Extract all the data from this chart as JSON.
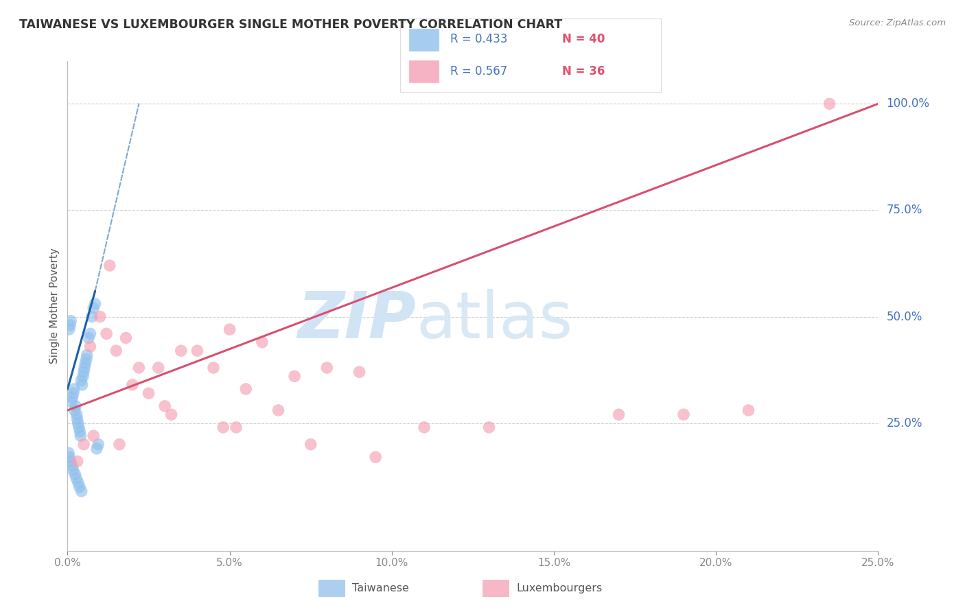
{
  "title": "TAIWANESE VS LUXEMBOURGER SINGLE MOTHER POVERTY CORRELATION CHART",
  "source": "Source: ZipAtlas.com",
  "ylabel": "Single Mother Poverty",
  "xlim": [
    0.0,
    25.0
  ],
  "ylim": [
    -5.0,
    110.0
  ],
  "y_data_min": 0.0,
  "y_data_max": 100.0,
  "taiwanese_color": "#90C0EC",
  "luxembourger_color": "#F4A0B5",
  "taiwanese_line_color": "#1a5fa8",
  "luxembourger_line_color": "#d94f6e",
  "taiwanese_R": 0.433,
  "taiwanese_N": 40,
  "luxembourger_R": 0.567,
  "luxembourger_N": 36,
  "tw_regression_x0": 0.0,
  "tw_regression_y0": 33.0,
  "tw_regression_x1": 0.85,
  "tw_regression_y1": 56.0,
  "tw_dashed_x0": 0.85,
  "tw_dashed_y0": 56.0,
  "tw_dashed_x1": 2.2,
  "tw_dashed_y1": 100.0,
  "lux_regression_x0": 0.0,
  "lux_regression_y0": 28.0,
  "lux_regression_x1": 25.0,
  "lux_regression_y1": 100.0,
  "taiwanese_x": [
    0.05,
    0.08,
    0.1,
    0.12,
    0.15,
    0.18,
    0.2,
    0.22,
    0.25,
    0.28,
    0.3,
    0.32,
    0.35,
    0.38,
    0.4,
    0.42,
    0.45,
    0.48,
    0.5,
    0.52,
    0.55,
    0.58,
    0.6,
    0.65,
    0.7,
    0.75,
    0.8,
    0.85,
    0.9,
    0.95,
    0.03,
    0.06,
    0.09,
    0.14,
    0.17,
    0.23,
    0.27,
    0.33,
    0.37,
    0.43
  ],
  "taiwanese_y": [
    47.0,
    48.0,
    49.0,
    30.0,
    31.0,
    32.0,
    33.0,
    28.0,
    29.0,
    27.0,
    26.0,
    25.0,
    24.0,
    23.0,
    22.0,
    35.0,
    34.0,
    36.0,
    37.0,
    38.0,
    39.0,
    40.0,
    41.0,
    45.0,
    46.0,
    50.0,
    52.0,
    53.0,
    19.0,
    20.0,
    18.0,
    17.0,
    16.0,
    15.0,
    14.0,
    13.0,
    12.0,
    11.0,
    10.0,
    9.0
  ],
  "luxembourger_x": [
    0.3,
    0.5,
    0.7,
    1.0,
    1.2,
    1.5,
    1.8,
    2.0,
    2.5,
    3.0,
    3.5,
    4.0,
    4.5,
    5.0,
    5.5,
    6.0,
    6.5,
    7.0,
    8.0,
    9.0,
    1.3,
    2.2,
    3.2,
    5.2,
    7.5,
    9.5,
    11.0,
    13.0,
    17.0,
    19.0,
    21.0,
    23.5,
    1.6,
    2.8,
    4.8,
    0.8
  ],
  "luxembourger_y": [
    16.0,
    20.0,
    43.0,
    50.0,
    46.0,
    42.0,
    45.0,
    34.0,
    32.0,
    29.0,
    42.0,
    42.0,
    38.0,
    47.0,
    33.0,
    44.0,
    28.0,
    36.0,
    38.0,
    37.0,
    62.0,
    38.0,
    27.0,
    24.0,
    20.0,
    17.0,
    24.0,
    24.0,
    27.0,
    27.0,
    28.0,
    100.0,
    20.0,
    38.0,
    24.0,
    22.0
  ],
  "watermark_zip": "ZIP",
  "watermark_atlas": "atlas",
  "watermark_color": "#D0E4F5",
  "background_color": "#FFFFFF",
  "grid_color": "#CCCCCC",
  "y_tick_values": [
    25,
    50,
    75,
    100
  ],
  "y_tick_labels": [
    "25.0%",
    "50.0%",
    "75.0%",
    "100.0%"
  ],
  "x_tick_values": [
    0,
    5,
    10,
    15,
    20,
    25
  ],
  "x_tick_labels": [
    "0.0%",
    "5.0%",
    "10.0%",
    "15.0%",
    "20.0%",
    "25.0%"
  ]
}
